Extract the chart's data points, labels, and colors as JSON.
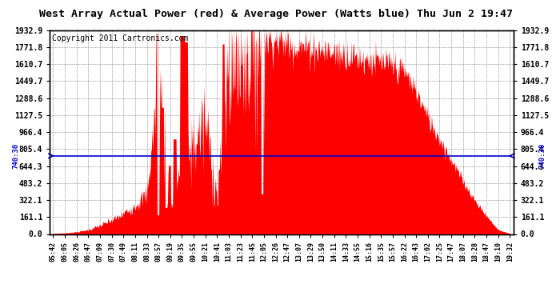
{
  "title": "West Array Actual Power (red) & Average Power (Watts blue) Thu Jun 2 19:47",
  "copyright": "Copyright 2011 Cartronics.com",
  "avg_power": 740.3,
  "y_max": 1932.9,
  "y_min": 0.0,
  "y_ticks": [
    0.0,
    161.1,
    322.1,
    483.2,
    644.3,
    805.4,
    966.4,
    1127.5,
    1288.6,
    1449.7,
    1610.7,
    1771.8,
    1932.9
  ],
  "x_labels": [
    "05:42",
    "06:05",
    "06:26",
    "06:47",
    "07:09",
    "07:30",
    "07:49",
    "08:11",
    "08:33",
    "08:57",
    "09:19",
    "09:35",
    "09:55",
    "10:21",
    "10:41",
    "11:03",
    "11:23",
    "11:45",
    "12:05",
    "12:26",
    "12:47",
    "13:07",
    "13:29",
    "13:50",
    "14:11",
    "14:33",
    "14:55",
    "15:16",
    "15:35",
    "15:57",
    "16:22",
    "16:43",
    "17:02",
    "17:25",
    "17:47",
    "18:07",
    "18:28",
    "18:47",
    "19:10",
    "19:32"
  ],
  "fill_color": "#FF0000",
  "line_color": "#0000CC",
  "background_color": "#FFFFFF",
  "grid_color": "#888888",
  "title_fontsize": 9.5,
  "copyright_fontsize": 7,
  "avg_label": "740:30",
  "power_profile": [
    5,
    10,
    20,
    40,
    80,
    130,
    190,
    280,
    370,
    1500,
    200,
    700,
    850,
    1050,
    350,
    1650,
    1700,
    1820,
    1850,
    1830,
    1800,
    1780,
    1760,
    1740,
    1720,
    1700,
    1670,
    1650,
    1620,
    1590,
    1540,
    1350,
    1100,
    900,
    700,
    500,
    320,
    170,
    40,
    5
  ]
}
